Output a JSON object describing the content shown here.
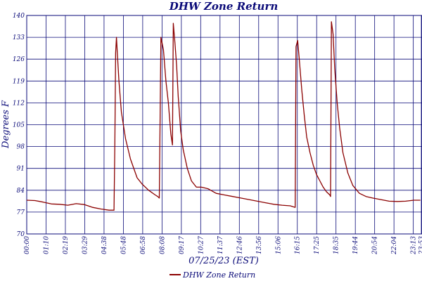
{
  "chart_data": {
    "type": "line",
    "title": "DHW Zone Return",
    "xlabel": "07/25/23 (EST)",
    "ylabel": "Degrees F",
    "ylim": [
      70,
      140
    ],
    "y_ticks": [
      "70",
      "77",
      "84",
      "91",
      "98",
      "105",
      "112",
      "119",
      "126",
      "133",
      "140"
    ],
    "x_ticks": [
      "00:00",
      "01:10",
      "02:19",
      "03:29",
      "04:38",
      "05:48",
      "06:58",
      "08:08",
      "09:17",
      "10:27",
      "11:37",
      "12:46",
      "13:56",
      "15:06",
      "16:15",
      "17:25",
      "18:35",
      "19:44",
      "20:54",
      "22:04",
      "23:13",
      "23:53"
    ],
    "grid": true,
    "legend_position": "bottom",
    "colors": {
      "line": "#8b0000",
      "axes": "#0a0a78",
      "grid": "#0a0a78"
    },
    "series": [
      {
        "name": "DHW Zone Return",
        "x": [
          0,
          0.5,
          1,
          1.5,
          2,
          2.5,
          3,
          3.5,
          4,
          4.5,
          5,
          5.3,
          5.35,
          5.4,
          5.45,
          5.5,
          5.6,
          5.75,
          6,
          6.3,
          6.7,
          7,
          7.4,
          7.8,
          7.95,
          8.05,
          8.15,
          8.3,
          8.45,
          8.6,
          8.75,
          8.85,
          8.9,
          9,
          9.1,
          9.2,
          9.35,
          9.5,
          9.75,
          10,
          10.3,
          10.6,
          11,
          11.5,
          12,
          12.5,
          13,
          13.5,
          14,
          14.5,
          15,
          15.5,
          16,
          16.3,
          16.35,
          16.45,
          16.55,
          16.7,
          16.85,
          17,
          17.2,
          17.4,
          17.6,
          17.8,
          18,
          18.2,
          18.4,
          18.45,
          18.5,
          18.6,
          18.7,
          18.85,
          19,
          19.2,
          19.5,
          19.8,
          20.2,
          20.6,
          21,
          21.5,
          22,
          22.5,
          23,
          23.5,
          23.9
        ],
        "y": [
          80.8,
          80.7,
          80.2,
          79.6,
          79.5,
          79.2,
          79.7,
          79.4,
          78.5,
          78.0,
          77.6,
          77.6,
          99,
          128,
          133,
          128,
          119,
          109,
          100.5,
          94,
          88,
          86,
          84,
          82.5,
          82.0,
          81.5,
          133,
          129,
          119,
          112,
          102,
          98.5,
          137.5,
          131,
          124,
          114,
          103,
          97,
          91,
          87,
          85,
          85,
          84.5,
          83,
          82.5,
          82,
          81.5,
          81,
          80.5,
          80,
          79.5,
          79.2,
          79,
          78.5,
          130,
          132,
          126,
          116,
          108,
          101,
          96,
          92,
          89,
          87,
          85,
          83.5,
          82.5,
          82,
          138,
          134,
          123,
          112,
          104,
          96,
          89.5,
          85.5,
          83,
          82,
          81.5,
          81,
          80.5,
          80.4,
          80.5,
          80.8,
          80.8
        ]
      }
    ]
  }
}
